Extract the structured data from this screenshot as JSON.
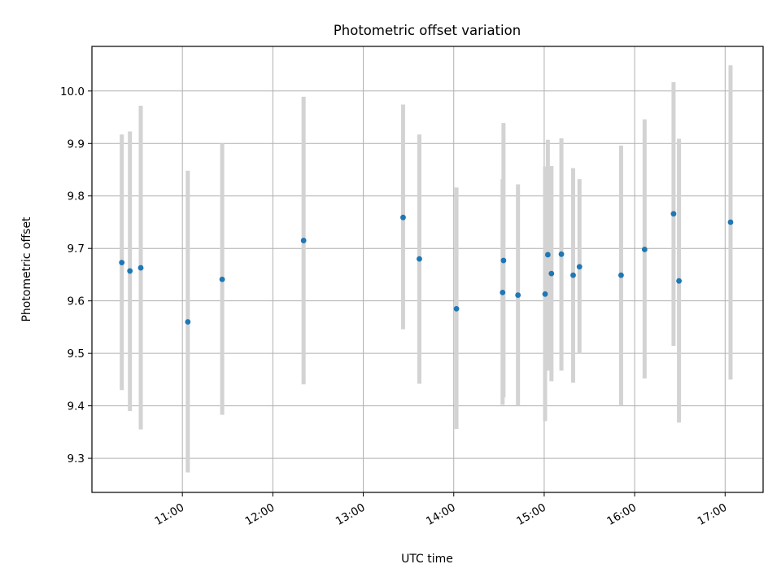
{
  "chart_data": {
    "type": "scatter",
    "title": "Photometric offset variation",
    "xlabel": "UTC time",
    "ylabel": "Photometric offset",
    "x_unit": "hours (UTC, decimal)",
    "xlim": [
      10.0,
      17.42
    ],
    "ylim": [
      9.235,
      10.085
    ],
    "grid": true,
    "x_ticks": [
      {
        "value": 11,
        "label": "11:00"
      },
      {
        "value": 12,
        "label": "12:00"
      },
      {
        "value": 13,
        "label": "13:00"
      },
      {
        "value": 14,
        "label": "14:00"
      },
      {
        "value": 15,
        "label": "15:00"
      },
      {
        "value": 16,
        "label": "16:00"
      },
      {
        "value": 17,
        "label": "17:00"
      }
    ],
    "y_ticks": [
      {
        "value": 9.3,
        "label": "9.3"
      },
      {
        "value": 9.4,
        "label": "9.4"
      },
      {
        "value": 9.5,
        "label": "9.5"
      },
      {
        "value": 9.6,
        "label": "9.6"
      },
      {
        "value": 9.7,
        "label": "9.7"
      },
      {
        "value": 9.8,
        "label": "9.8"
      },
      {
        "value": 9.9,
        "label": "9.9"
      },
      {
        "value": 10.0,
        "label": "10.0"
      }
    ],
    "series": [
      {
        "name": "offset",
        "marker_color": "#1f77b4",
        "errorbar_color": "#d3d3d3",
        "points": [
          {
            "x": 10.33,
            "y": 9.673,
            "low": 9.43,
            "high": 9.917
          },
          {
            "x": 10.42,
            "y": 9.657,
            "low": 9.39,
            "high": 9.923
          },
          {
            "x": 10.54,
            "y": 9.663,
            "low": 9.355,
            "high": 9.972
          },
          {
            "x": 11.06,
            "y": 9.56,
            "low": 9.273,
            "high": 9.848
          },
          {
            "x": 11.44,
            "y": 9.641,
            "low": 9.383,
            "high": 9.9
          },
          {
            "x": 12.34,
            "y": 9.715,
            "low": 9.441,
            "high": 9.989
          },
          {
            "x": 13.44,
            "y": 9.759,
            "low": 9.546,
            "high": 9.974
          },
          {
            "x": 13.62,
            "y": 9.68,
            "low": 9.442,
            "high": 9.917
          },
          {
            "x": 14.03,
            "y": 9.585,
            "low": 9.356,
            "high": 9.816
          },
          {
            "x": 14.54,
            "y": 9.616,
            "low": 9.402,
            "high": 9.832
          },
          {
            "x": 14.55,
            "y": 9.677,
            "low": 9.416,
            "high": 9.939
          },
          {
            "x": 14.71,
            "y": 9.611,
            "low": 9.4,
            "high": 9.822
          },
          {
            "x": 15.01,
            "y": 9.613,
            "low": 9.371,
            "high": 9.856
          },
          {
            "x": 15.04,
            "y": 9.688,
            "low": 9.467,
            "high": 9.907
          },
          {
            "x": 15.08,
            "y": 9.652,
            "low": 9.447,
            "high": 9.857
          },
          {
            "x": 15.19,
            "y": 9.689,
            "low": 9.467,
            "high": 9.91
          },
          {
            "x": 15.32,
            "y": 9.649,
            "low": 9.444,
            "high": 9.853
          },
          {
            "x": 15.39,
            "y": 9.665,
            "low": 9.499,
            "high": 9.832
          },
          {
            "x": 15.85,
            "y": 9.649,
            "low": 9.4,
            "high": 9.896
          },
          {
            "x": 16.11,
            "y": 9.698,
            "low": 9.452,
            "high": 9.946
          },
          {
            "x": 16.43,
            "y": 9.766,
            "low": 9.514,
            "high": 10.017
          },
          {
            "x": 16.49,
            "y": 9.638,
            "low": 9.368,
            "high": 9.909
          },
          {
            "x": 17.06,
            "y": 9.75,
            "low": 9.45,
            "high": 10.049
          }
        ]
      }
    ]
  }
}
